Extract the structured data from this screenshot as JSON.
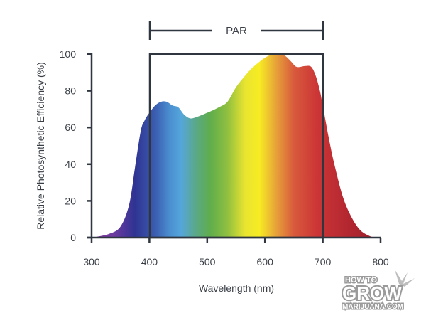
{
  "chart_data": {
    "type": "area",
    "title": "",
    "xlabel": "Wavelength (nm)",
    "ylabel": "Relative Photosynthetic Efficiency (%)",
    "xlim": [
      300,
      800
    ],
    "ylim": [
      0,
      100
    ],
    "x_ticks": [
      300,
      400,
      500,
      600,
      700,
      800
    ],
    "y_ticks": [
      0,
      20,
      40,
      60,
      80,
      100
    ],
    "grid": false,
    "legend": null,
    "series": [
      {
        "name": "Relative Photosynthetic Efficiency",
        "x": [
          300,
          330,
          350,
          365,
          375,
          385,
          392,
          400,
          410,
          420,
          430,
          440,
          450,
          460,
          470,
          480,
          500,
          520,
          535,
          550,
          565,
          580,
          600,
          615,
          625,
          635,
          645,
          655,
          670,
          680,
          688,
          695,
          700,
          710,
          720,
          735,
          750,
          765,
          780,
          790
        ],
        "values": [
          0,
          2,
          6,
          18,
          38,
          58,
          64,
          68,
          72,
          74,
          74,
          72,
          71,
          67,
          65,
          65.5,
          68,
          71,
          74,
          82,
          88,
          93,
          98,
          100,
          100,
          99,
          96,
          93,
          93.5,
          93,
          88,
          80,
          72,
          55,
          40,
          22,
          11,
          4,
          1,
          0
        ]
      }
    ],
    "annotations": [
      {
        "type": "bracket",
        "label": "PAR",
        "x_start": 400,
        "x_end": 700
      },
      {
        "type": "box",
        "x_start": 400,
        "x_end": 700,
        "y_start": 0,
        "y_end": 100
      }
    ],
    "fill": "visible spectrum gradient (violet → blue → green → yellow → orange → red)"
  },
  "labels": {
    "par": "PAR",
    "xlabel": "Wavelength (nm)",
    "ylabel": "Relative Photosynthetic Efficiency (%)",
    "x_tick_labels": [
      "300",
      "400",
      "500",
      "600",
      "700",
      "800"
    ],
    "y_tick_labels": [
      "0",
      "20",
      "40",
      "60",
      "80",
      "100"
    ]
  },
  "watermark": {
    "line1": "HOW TO",
    "line2": "GROW",
    "line3": "MARIJUANA.COM"
  },
  "colors": {
    "axis": "#2f3640",
    "text": "#3a3f47",
    "violet": "#7b3fa0",
    "indigo": "#2e3591",
    "blue": "#4a90d0",
    "green": "#5fae4c",
    "yellow": "#f5ea2a",
    "orange": "#e08a3a",
    "red": "#cf3a36",
    "deep_red": "#a8202e"
  }
}
